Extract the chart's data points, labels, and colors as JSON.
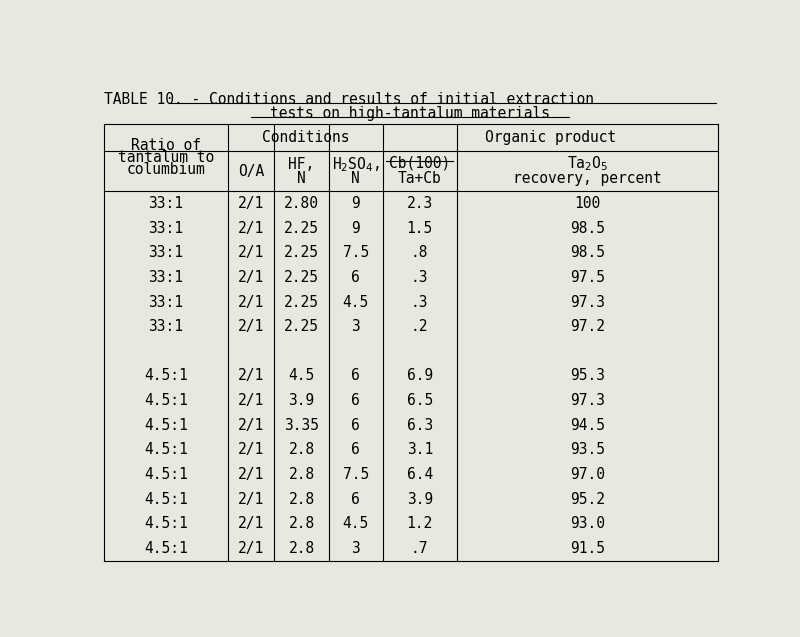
{
  "title_pre": "TABLE 10. - ",
  "title_line1_underlined": "Conditions and results of initial extraction",
  "title_line2_underlined": "tests on high-tantalum materials",
  "bg_color": "#e8e8e0",
  "font_size": 10.5,
  "rows": [
    [
      "33:1",
      "2/1",
      "2.80",
      "9",
      "2.3",
      "100"
    ],
    [
      "33:1",
      "2/1",
      "2.25",
      "9",
      "1.5",
      "98.5"
    ],
    [
      "33:1",
      "2/1",
      "2.25",
      "7.5",
      ".8",
      "98.5"
    ],
    [
      "33:1",
      "2/1",
      "2.25",
      "6",
      ".3",
      "97.5"
    ],
    [
      "33:1",
      "2/1",
      "2.25",
      "4.5",
      ".3",
      "97.3"
    ],
    [
      "33:1",
      "2/1",
      "2.25",
      "3",
      ".2",
      "97.2"
    ],
    [
      "",
      "",
      "",
      "",
      "",
      ""
    ],
    [
      "4.5:1",
      "2/1",
      "4.5",
      "6",
      "6.9",
      "95.3"
    ],
    [
      "4.5:1",
      "2/1",
      "3.9",
      "6",
      "6.5",
      "97.3"
    ],
    [
      "4.5:1",
      "2/1",
      "3.35",
      "6",
      "6.3",
      "94.5"
    ],
    [
      "4.5:1",
      "2/1",
      "2.8",
      "6",
      "3.1",
      "93.5"
    ],
    [
      "4.5:1",
      "2/1",
      "2.8",
      "7.5",
      "6.4",
      "97.0"
    ],
    [
      "4.5:1",
      "2/1",
      "2.8",
      "6",
      "3.9",
      "95.2"
    ],
    [
      "4.5:1",
      "2/1",
      "2.8",
      "4.5",
      "1.2",
      "93.0"
    ],
    [
      "4.5:1",
      "2/1",
      "2.8",
      "3",
      ".7",
      "91.5"
    ]
  ]
}
